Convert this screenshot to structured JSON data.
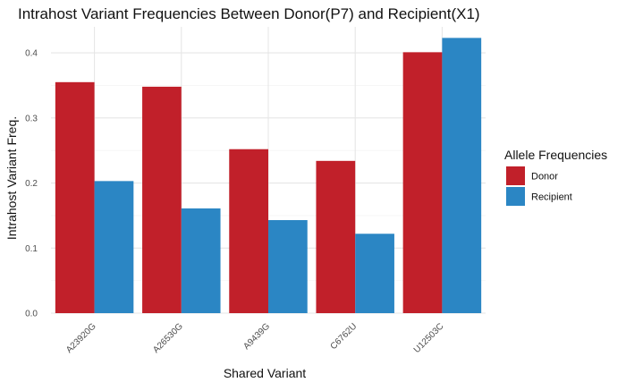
{
  "chart_data": {
    "type": "bar",
    "title": "Intrahost Variant Frequencies Between Donor(P7) and Recipient(X1)",
    "xlabel": "Shared Variant",
    "ylabel": "Intrahost Variant Freq.",
    "categories": [
      "A23920G",
      "A26530G",
      "A9439G",
      "C6762U",
      "U12503C"
    ],
    "series": [
      {
        "name": "Donor",
        "color": "#c1202a",
        "values": [
          0.355,
          0.348,
          0.252,
          0.234,
          0.401
        ]
      },
      {
        "name": "Recipient",
        "color": "#2b86c4",
        "values": [
          0.203,
          0.161,
          0.143,
          0.122,
          0.423
        ]
      }
    ],
    "ylim": [
      0,
      0.44
    ],
    "yticks": [
      0.0,
      0.1,
      0.2,
      0.3,
      0.4
    ],
    "ytick_labels": [
      "0.0",
      "0.1",
      "0.2",
      "0.3",
      "0.4"
    ],
    "grid": true,
    "legend": {
      "title": "Allele Frequencies",
      "position": "right"
    }
  }
}
